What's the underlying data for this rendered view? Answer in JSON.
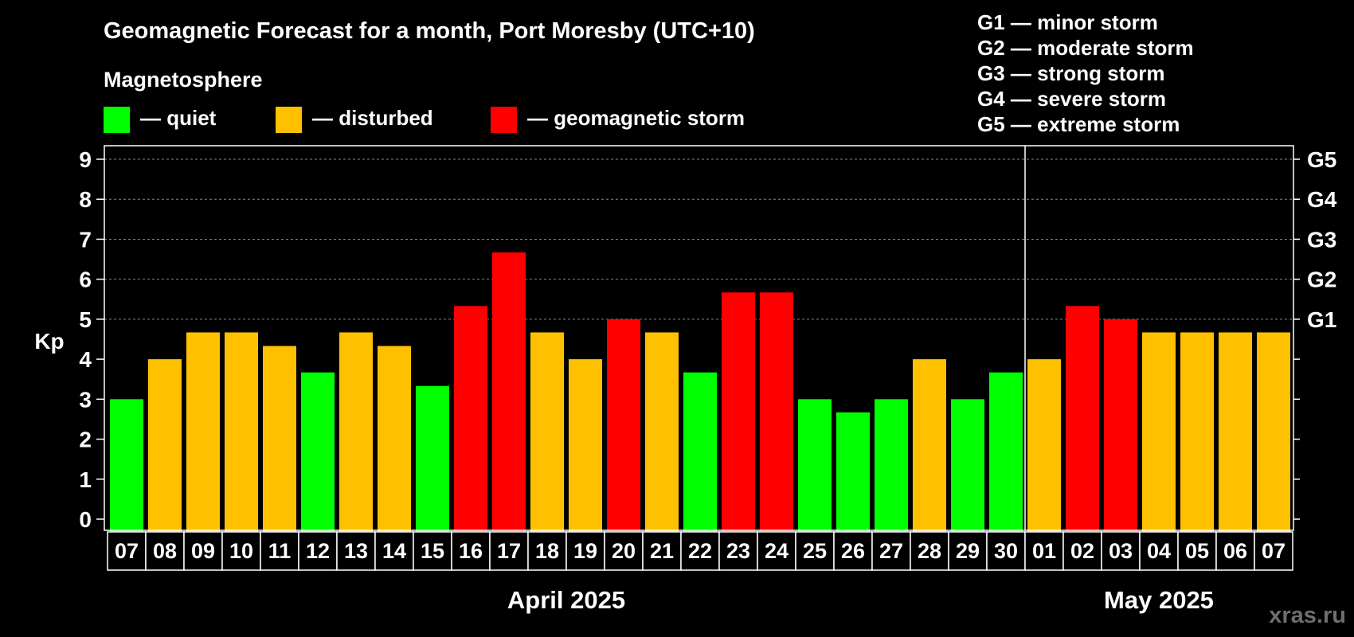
{
  "title": "Geomagnetic Forecast for a month, Port Moresby (UTC+10)",
  "magnetosphere_label": "Magnetosphere",
  "legend": [
    {
      "label": "— quiet",
      "color": "#00ff00"
    },
    {
      "label": "— disturbed",
      "color": "#ffc000"
    },
    {
      "label": "— geomagnetic storm",
      "color": "#ff0000"
    }
  ],
  "storm_levels": [
    "G1 — minor storm",
    "G2 — moderate storm",
    "G3 — strong storm",
    "G4 — severe storm",
    "G5 — extreme storm"
  ],
  "watermark": "xras.ru",
  "colors": {
    "quiet": "#00ff00",
    "disturbed": "#ffc000",
    "storm": "#ff0000",
    "background": "#000000",
    "grid": "#888888"
  },
  "chart_data": {
    "type": "bar",
    "ylabel": "Kp",
    "ylim": [
      0,
      9
    ],
    "yticks": [
      0,
      1,
      2,
      3,
      4,
      5,
      6,
      7,
      8,
      9
    ],
    "right_axis": [
      {
        "kp": 5,
        "label": "G1"
      },
      {
        "kp": 6,
        "label": "G2"
      },
      {
        "kp": 7,
        "label": "G3"
      },
      {
        "kp": 8,
        "label": "G4"
      },
      {
        "kp": 9,
        "label": "G5"
      }
    ],
    "grid": "dashed at G-levels",
    "categories": [
      "07",
      "08",
      "09",
      "10",
      "11",
      "12",
      "13",
      "14",
      "15",
      "16",
      "17",
      "18",
      "19",
      "20",
      "21",
      "22",
      "23",
      "24",
      "25",
      "26",
      "27",
      "28",
      "29",
      "30",
      "01",
      "02",
      "03",
      "04",
      "05",
      "06",
      "07"
    ],
    "values": [
      3.0,
      4.0,
      4.67,
      4.67,
      4.33,
      3.67,
      4.67,
      4.33,
      3.33,
      5.33,
      6.67,
      4.67,
      4.0,
      5.0,
      4.67,
      3.67,
      5.67,
      5.67,
      3.0,
      2.67,
      3.0,
      4.0,
      3.0,
      3.67,
      4.0,
      5.33,
      5.0,
      4.67,
      4.67,
      4.67,
      4.67
    ],
    "status": [
      "quiet",
      "disturbed",
      "disturbed",
      "disturbed",
      "disturbed",
      "quiet",
      "disturbed",
      "disturbed",
      "quiet",
      "storm",
      "storm",
      "disturbed",
      "disturbed",
      "storm",
      "disturbed",
      "quiet",
      "storm",
      "storm",
      "quiet",
      "quiet",
      "quiet",
      "disturbed",
      "quiet",
      "quiet",
      "disturbed",
      "storm",
      "storm",
      "disturbed",
      "disturbed",
      "disturbed",
      "disturbed"
    ],
    "months": [
      {
        "label": "April 2025",
        "days": 24
      },
      {
        "label": "May 2025",
        "days": 7
      }
    ]
  }
}
